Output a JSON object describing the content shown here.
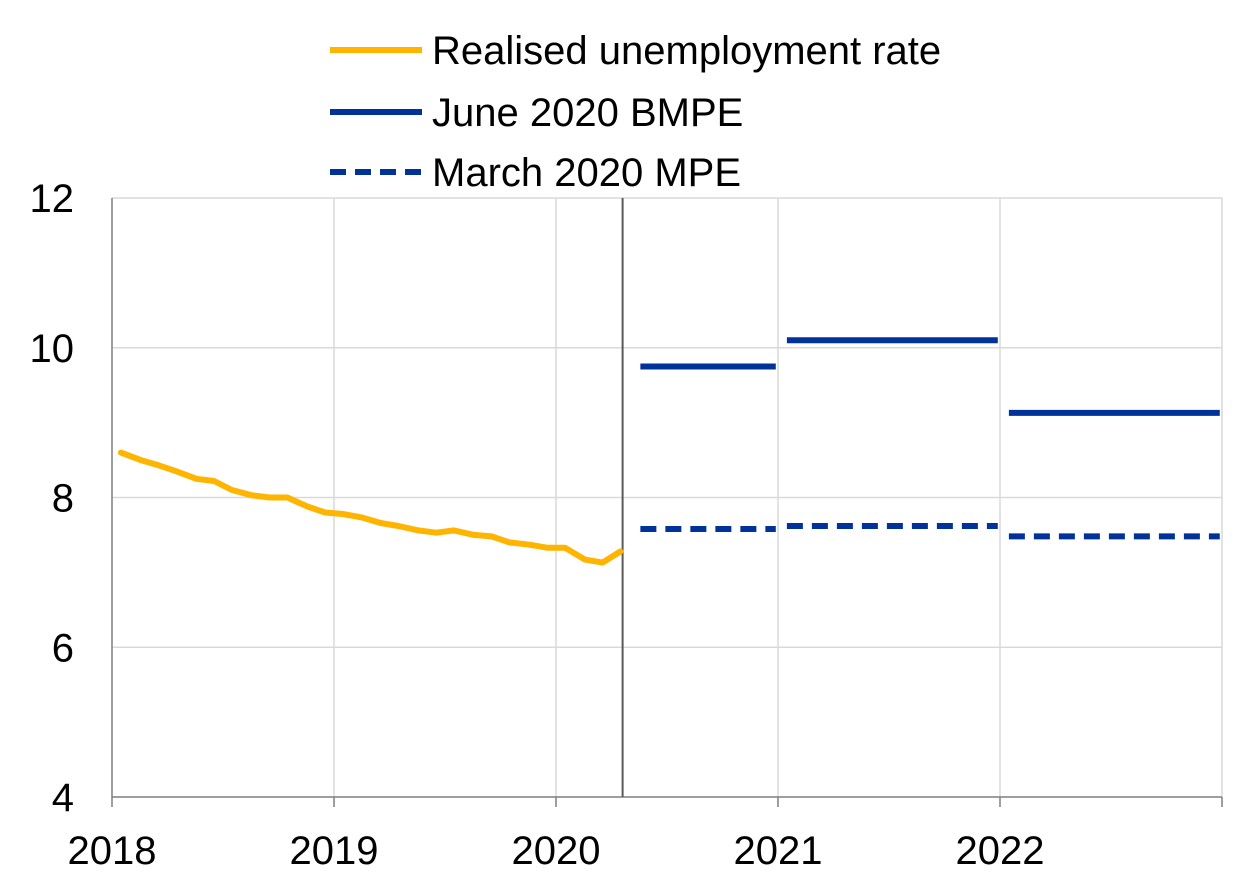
{
  "chart_data": {
    "type": "line",
    "x_axis": {
      "range": [
        2018,
        2023
      ],
      "ticks": [
        {
          "value": 2018,
          "label": "2018"
        },
        {
          "value": 2019,
          "label": "2019"
        },
        {
          "value": 2020,
          "label": "2020"
        },
        {
          "value": 2021,
          "label": "2021"
        },
        {
          "value": 2022,
          "label": "2022"
        }
      ]
    },
    "y_axis": {
      "range": [
        4,
        12
      ],
      "ticks": [
        {
          "value": 4,
          "label": "4"
        },
        {
          "value": 6,
          "label": "6"
        },
        {
          "value": 8,
          "label": "8"
        },
        {
          "value": 10,
          "label": "10"
        },
        {
          "value": 12,
          "label": "12"
        }
      ]
    },
    "grid": true,
    "legend_position": "top",
    "projection_start": 2020.3,
    "series": [
      {
        "name": "Realised unemployment rate",
        "color": "#FFB400",
        "style": "solid",
        "points": [
          [
            2018.04,
            8.6
          ],
          [
            2018.13,
            8.5
          ],
          [
            2018.21,
            8.43
          ],
          [
            2018.29,
            8.35
          ],
          [
            2018.38,
            8.25
          ],
          [
            2018.46,
            8.22
          ],
          [
            2018.54,
            8.1
          ],
          [
            2018.63,
            8.03
          ],
          [
            2018.71,
            8.0
          ],
          [
            2018.79,
            8.0
          ],
          [
            2018.88,
            7.88
          ],
          [
            2018.96,
            7.8
          ],
          [
            2019.04,
            7.78
          ],
          [
            2019.13,
            7.73
          ],
          [
            2019.21,
            7.66
          ],
          [
            2019.29,
            7.62
          ],
          [
            2019.38,
            7.56
          ],
          [
            2019.46,
            7.53
          ],
          [
            2019.54,
            7.56
          ],
          [
            2019.63,
            7.5
          ],
          [
            2019.71,
            7.48
          ],
          [
            2019.79,
            7.4
          ],
          [
            2019.88,
            7.37
          ],
          [
            2019.96,
            7.33
          ],
          [
            2020.04,
            7.33
          ],
          [
            2020.13,
            7.17
          ],
          [
            2020.21,
            7.13
          ],
          [
            2020.29,
            7.28
          ]
        ]
      },
      {
        "name": "June 2020 BMPE",
        "color": "#003299",
        "style": "solid",
        "segments": [
          {
            "x": [
              2020.38,
              2020.99
            ],
            "y": 9.75
          },
          {
            "x": [
              2021.04,
              2021.99
            ],
            "y": 10.1
          },
          {
            "x": [
              2022.04,
              2022.99
            ],
            "y": 9.13
          }
        ]
      },
      {
        "name": "March 2020 MPE",
        "color": "#003299",
        "style": "dashed",
        "segments": [
          {
            "x": [
              2020.38,
              2020.99
            ],
            "y": 7.58
          },
          {
            "x": [
              2021.04,
              2021.99
            ],
            "y": 7.62
          },
          {
            "x": [
              2022.04,
              2022.99
            ],
            "y": 7.48
          }
        ]
      }
    ]
  }
}
